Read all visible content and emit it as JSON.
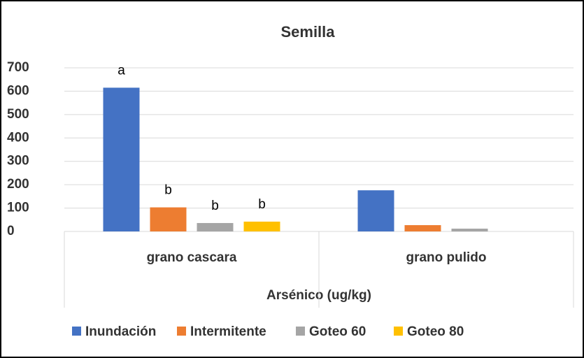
{
  "chart_data": {
    "type": "bar",
    "title": "Semilla",
    "x_label": "Arsénico (ug/kg)",
    "categories": [
      "grano cascara",
      "grano pulido"
    ],
    "series": [
      {
        "name": "Inundación",
        "color": "#4472c4",
        "values": [
          615,
          176
        ],
        "labels": [
          "a",
          null
        ]
      },
      {
        "name": "Intermitente",
        "color": "#ed7d31",
        "values": [
          103,
          27
        ],
        "labels": [
          "b",
          null
        ]
      },
      {
        "name": "Goteo 60",
        "color": "#a5a5a5",
        "values": [
          36,
          12
        ],
        "labels": [
          "b",
          null
        ]
      },
      {
        "name": "Goteo 80",
        "color": "#ffc000",
        "values": [
          42,
          null
        ],
        "labels": [
          "b",
          null
        ]
      }
    ],
    "ylim": [
      0,
      700
    ],
    "yticks": [
      0,
      100,
      200,
      300,
      400,
      500,
      600,
      700
    ],
    "grid": true,
    "legend": "bottom"
  }
}
